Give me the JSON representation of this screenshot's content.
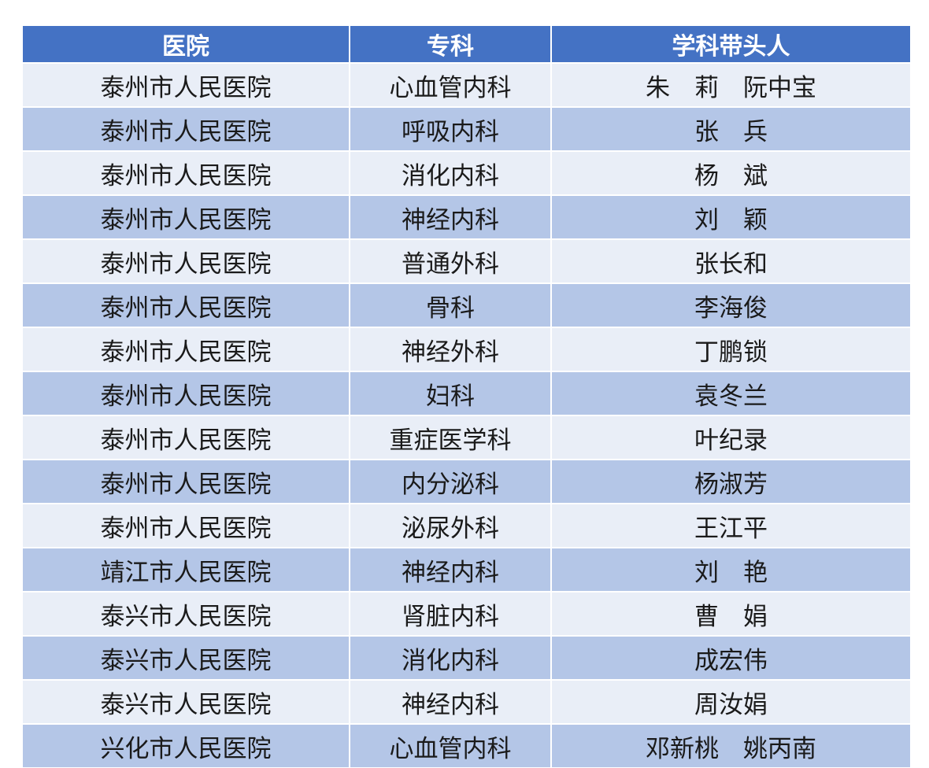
{
  "table": {
    "headers": [
      "医院",
      "专科",
      "学科带头人"
    ],
    "rows": [
      [
        "泰州市人民医院",
        "心血管内科",
        "朱　莉　阮中宝"
      ],
      [
        "泰州市人民医院",
        "呼吸内科",
        "张　兵"
      ],
      [
        "泰州市人民医院",
        "消化内科",
        "杨　斌"
      ],
      [
        "泰州市人民医院",
        "神经内科",
        "刘　颖"
      ],
      [
        "泰州市人民医院",
        "普通外科",
        "张长和"
      ],
      [
        "泰州市人民医院",
        "骨科",
        "李海俊"
      ],
      [
        "泰州市人民医院",
        "神经外科",
        "丁鹏锁"
      ],
      [
        "泰州市人民医院",
        "妇科",
        "袁冬兰"
      ],
      [
        "泰州市人民医院",
        "重症医学科",
        "叶纪录"
      ],
      [
        "泰州市人民医院",
        "内分泌科",
        "杨淑芳"
      ],
      [
        "泰州市人民医院",
        "泌尿外科",
        "王江平"
      ],
      [
        "靖江市人民医院",
        "神经内科",
        "刘　艳"
      ],
      [
        "泰兴市人民医院",
        "肾脏内科",
        "曹　娟"
      ],
      [
        "泰兴市人民医院",
        "消化内科",
        "成宏伟"
      ],
      [
        "泰兴市人民医院",
        "神经内科",
        "周汝娟"
      ],
      [
        "兴化市人民医院",
        "心血管内科",
        "邓新桃　姚丙南"
      ]
    ]
  },
  "colors": {
    "header": "#4472C4",
    "row_light": "#E9EEF7",
    "row_dark": "#B4C6E7"
  }
}
